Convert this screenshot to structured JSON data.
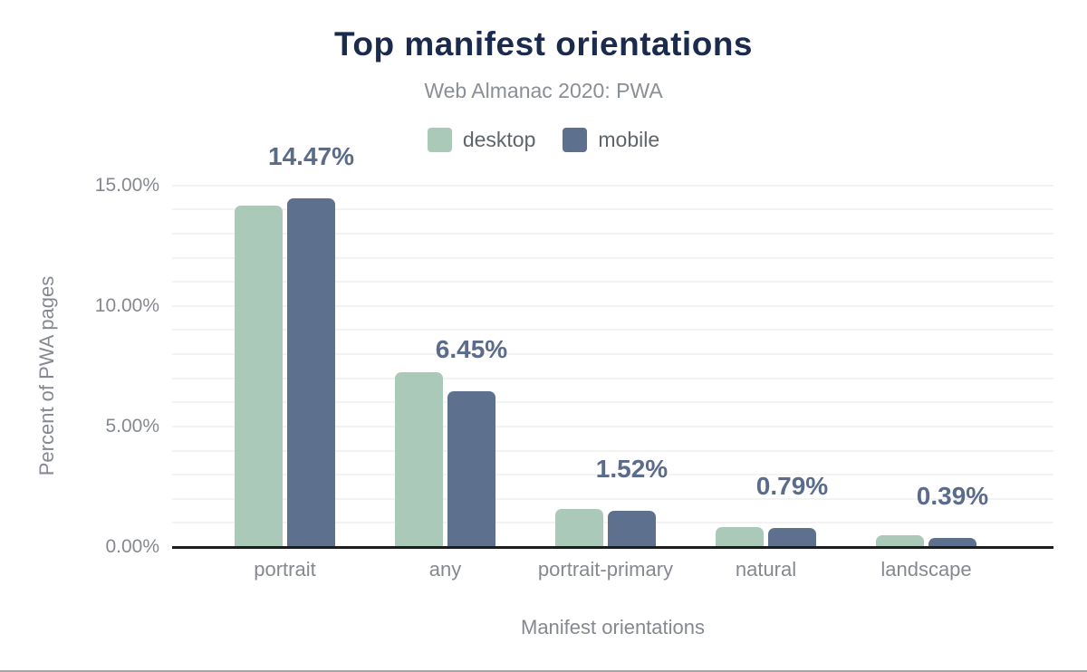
{
  "chart_data": {
    "type": "bar",
    "title": "Top manifest orientations",
    "subtitle": "Web Almanac 2020: PWA",
    "xlabel": "Manifest orientations",
    "ylabel": "Percent of PWA pages",
    "categories": [
      "portrait",
      "any",
      "portrait-primary",
      "natural",
      "landscape"
    ],
    "series": [
      {
        "name": "desktop",
        "color": "#aac9b8",
        "values": [
          14.16,
          7.25,
          1.57,
          0.81,
          0.48
        ]
      },
      {
        "name": "mobile",
        "color": "#5d718f",
        "values": [
          14.47,
          6.45,
          1.52,
          0.79,
          0.39
        ]
      }
    ],
    "value_labels": {
      "series": "mobile",
      "values": [
        "14.47%",
        "6.45%",
        "1.52%",
        "0.79%",
        "0.39%"
      ]
    },
    "ylim": [
      0,
      16
    ],
    "y_ticks": [
      {
        "value": 0,
        "label": "0.00%"
      },
      {
        "value": 5,
        "label": "5.00%"
      },
      {
        "value": 10,
        "label": "10.00%"
      },
      {
        "value": 15,
        "label": "15.00%"
      }
    ],
    "y_minor_grid_step": 1,
    "grid": true,
    "legend_position": "top"
  },
  "colors": {
    "title": "#1b2b4d",
    "subtitle": "#8a8f96",
    "axis_text": "#85898f",
    "legend_text": "#5e646b",
    "value_label": "#5a6b8c",
    "axis_line": "#1d1d1d",
    "grid": "#f3f3f3",
    "desktop": "#aac9b8",
    "mobile": "#5d718f"
  }
}
